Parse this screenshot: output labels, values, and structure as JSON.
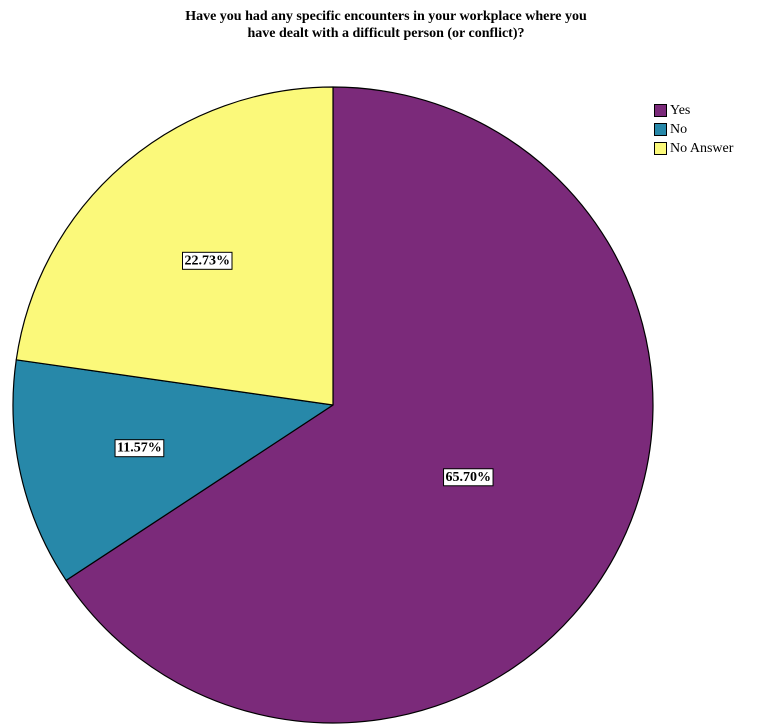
{
  "chart_data": {
    "type": "pie",
    "title": [
      "Have you had any specific encounters in your workplace where you",
      "have dealt with a difficult person (or conflict)?"
    ],
    "legend_position": "top-right",
    "slices": [
      {
        "name": "Yes",
        "value": 65.7,
        "label": "65.70%",
        "color": "#7b2a7a"
      },
      {
        "name": "No",
        "value": 11.57,
        "label": "11.57%",
        "color": "#2788a9"
      },
      {
        "name": "No Answer",
        "value": 22.73,
        "label": "22.73%",
        "color": "#fbf97a"
      }
    ],
    "start_angle_deg": 0,
    "direction": "clockwise"
  }
}
